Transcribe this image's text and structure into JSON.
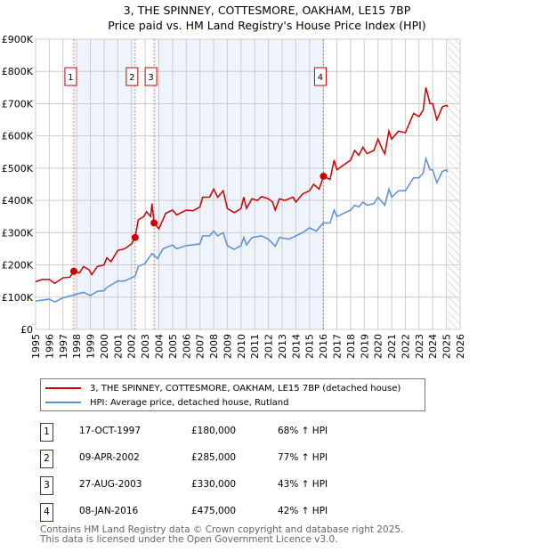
{
  "chart_data": {
    "type": "line",
    "title": "3, THE SPINNEY, COTTESMORE, OAKHAM, LE15 7BP",
    "subtitle": "Price paid vs. HM Land Registry's House Price Index (HPI)",
    "xlim": [
      1995,
      2026
    ],
    "ylim": [
      0,
      900000
    ],
    "x_ticks": [
      "1995",
      "1996",
      "1997",
      "1998",
      "1999",
      "2000",
      "2001",
      "2002",
      "2003",
      "2004",
      "2005",
      "2006",
      "2007",
      "2008",
      "2009",
      "2010",
      "2011",
      "2012",
      "2013",
      "2014",
      "2015",
      "2016",
      "2017",
      "2018",
      "2019",
      "2020",
      "2021",
      "2022",
      "2023",
      "2024",
      "2025",
      "2026"
    ],
    "y_ticks": [
      {
        "v": 0,
        "label": "£0"
      },
      {
        "v": 100000,
        "label": "£100K"
      },
      {
        "v": 200000,
        "label": "£200K"
      },
      {
        "v": 300000,
        "label": "£300K"
      },
      {
        "v": 400000,
        "label": "£400K"
      },
      {
        "v": 500000,
        "label": "£500K"
      },
      {
        "v": 600000,
        "label": "£600K"
      },
      {
        "v": 700000,
        "label": "£700K"
      },
      {
        "v": 800000,
        "label": "£800K"
      },
      {
        "v": 900000,
        "label": "£900K"
      }
    ],
    "grid": true,
    "shaded_ranges": [
      [
        1997.79,
        2002.27
      ],
      [
        2003.65,
        2016.02
      ]
    ],
    "hatched_from": 2025.1,
    "series": [
      {
        "name": "3, THE SPINNEY, COTTESMORE, OAKHAM, LE15 7BP (detached house)",
        "color": "#cc0000",
        "points": [
          [
            1995.0,
            148
          ],
          [
            1995.5,
            155
          ],
          [
            1996.0,
            155
          ],
          [
            1996.4,
            143
          ],
          [
            1997.0,
            160
          ],
          [
            1997.5,
            162
          ],
          [
            1997.79,
            180
          ],
          [
            1998.2,
            175
          ],
          [
            1998.5,
            195
          ],
          [
            1998.9,
            185
          ],
          [
            1999.1,
            170
          ],
          [
            1999.5,
            195
          ],
          [
            2000.0,
            200
          ],
          [
            2000.2,
            222
          ],
          [
            2000.5,
            210
          ],
          [
            2001.0,
            245
          ],
          [
            2001.5,
            250
          ],
          [
            2002.0,
            265
          ],
          [
            2002.27,
            285
          ],
          [
            2002.5,
            340
          ],
          [
            2002.9,
            350
          ],
          [
            2003.1,
            365
          ],
          [
            2003.4,
            350
          ],
          [
            2003.5,
            390
          ],
          [
            2003.65,
            330
          ],
          [
            2004.0,
            312
          ],
          [
            2004.5,
            360
          ],
          [
            2005.0,
            370
          ],
          [
            2005.3,
            355
          ],
          [
            2006.0,
            370
          ],
          [
            2006.5,
            368
          ],
          [
            2007.0,
            380
          ],
          [
            2007.2,
            410
          ],
          [
            2007.7,
            410
          ],
          [
            2008.0,
            435
          ],
          [
            2008.3,
            410
          ],
          [
            2008.7,
            430
          ],
          [
            2009.0,
            375
          ],
          [
            2009.5,
            362
          ],
          [
            2010.0,
            375
          ],
          [
            2010.2,
            410
          ],
          [
            2010.4,
            375
          ],
          [
            2010.8,
            405
          ],
          [
            2011.2,
            400
          ],
          [
            2011.5,
            412
          ],
          [
            2012.0,
            405
          ],
          [
            2012.3,
            395
          ],
          [
            2012.5,
            370
          ],
          [
            2012.8,
            405
          ],
          [
            2013.2,
            400
          ],
          [
            2013.8,
            410
          ],
          [
            2014.0,
            395
          ],
          [
            2014.5,
            420
          ],
          [
            2015.0,
            430
          ],
          [
            2015.3,
            450
          ],
          [
            2015.7,
            435
          ],
          [
            2016.02,
            475
          ],
          [
            2016.5,
            465
          ],
          [
            2016.8,
            525
          ],
          [
            2017.0,
            495
          ],
          [
            2017.5,
            510
          ],
          [
            2018.0,
            525
          ],
          [
            2018.3,
            555
          ],
          [
            2018.6,
            540
          ],
          [
            2018.9,
            565
          ],
          [
            2019.2,
            545
          ],
          [
            2019.7,
            555
          ],
          [
            2020.0,
            590
          ],
          [
            2020.3,
            560
          ],
          [
            2020.5,
            545
          ],
          [
            2020.8,
            615
          ],
          [
            2021.0,
            590
          ],
          [
            2021.5,
            615
          ],
          [
            2022.0,
            610
          ],
          [
            2022.3,
            640
          ],
          [
            2022.6,
            670
          ],
          [
            2023.0,
            660
          ],
          [
            2023.3,
            680
          ],
          [
            2023.5,
            750
          ],
          [
            2023.8,
            700
          ],
          [
            2024.0,
            700
          ],
          [
            2024.3,
            650
          ],
          [
            2024.7,
            690
          ],
          [
            2025.0,
            695
          ],
          [
            2025.1,
            690
          ]
        ]
      },
      {
        "name": "HPI: Average price, detached house, Rutland",
        "color": "#5b8fd4",
        "points": [
          [
            1995.0,
            88
          ],
          [
            1996.0,
            94
          ],
          [
            1996.4,
            85
          ],
          [
            1997.0,
            98
          ],
          [
            1997.79,
            107
          ],
          [
            1998.5,
            115
          ],
          [
            1999.0,
            105
          ],
          [
            1999.5,
            118
          ],
          [
            2000.0,
            120
          ],
          [
            2000.2,
            130
          ],
          [
            2001.0,
            150
          ],
          [
            2001.5,
            150
          ],
          [
            2002.0,
            160
          ],
          [
            2002.27,
            165
          ],
          [
            2002.5,
            195
          ],
          [
            2003.0,
            205
          ],
          [
            2003.5,
            235
          ],
          [
            2003.9,
            220
          ],
          [
            2004.3,
            250
          ],
          [
            2005.0,
            262
          ],
          [
            2005.3,
            250
          ],
          [
            2006.0,
            260
          ],
          [
            2007.0,
            265
          ],
          [
            2007.2,
            290
          ],
          [
            2007.7,
            290
          ],
          [
            2008.0,
            305
          ],
          [
            2008.3,
            290
          ],
          [
            2008.7,
            300
          ],
          [
            2009.0,
            260
          ],
          [
            2009.5,
            248
          ],
          [
            2010.0,
            260
          ],
          [
            2010.2,
            285
          ],
          [
            2010.4,
            262
          ],
          [
            2010.8,
            285
          ],
          [
            2011.5,
            290
          ],
          [
            2012.0,
            280
          ],
          [
            2012.5,
            258
          ],
          [
            2012.8,
            285
          ],
          [
            2013.5,
            280
          ],
          [
            2014.0,
            290
          ],
          [
            2014.5,
            300
          ],
          [
            2015.0,
            315
          ],
          [
            2015.5,
            305
          ],
          [
            2016.0,
            330
          ],
          [
            2016.5,
            330
          ],
          [
            2016.8,
            370
          ],
          [
            2017.0,
            350
          ],
          [
            2017.5,
            360
          ],
          [
            2018.0,
            370
          ],
          [
            2018.3,
            385
          ],
          [
            2018.6,
            380
          ],
          [
            2018.9,
            395
          ],
          [
            2019.2,
            385
          ],
          [
            2019.7,
            390
          ],
          [
            2020.0,
            410
          ],
          [
            2020.3,
            395
          ],
          [
            2020.5,
            385
          ],
          [
            2020.8,
            435
          ],
          [
            2021.0,
            410
          ],
          [
            2021.5,
            430
          ],
          [
            2022.0,
            430
          ],
          [
            2022.3,
            450
          ],
          [
            2022.6,
            470
          ],
          [
            2023.0,
            470
          ],
          [
            2023.3,
            485
          ],
          [
            2023.5,
            530
          ],
          [
            2023.8,
            495
          ],
          [
            2024.0,
            495
          ],
          [
            2024.3,
            455
          ],
          [
            2024.7,
            490
          ],
          [
            2025.0,
            495
          ],
          [
            2025.1,
            488
          ]
        ]
      }
    ],
    "sales": [
      {
        "label": "1",
        "x": 1997.79,
        "y": 180000
      },
      {
        "label": "2",
        "x": 2002.27,
        "y": 285000
      },
      {
        "label": "3",
        "x": 2003.65,
        "y": 330000
      },
      {
        "label": "4",
        "x": 2016.02,
        "y": 475000
      }
    ]
  },
  "header": {
    "title": "3, THE SPINNEY, COTTESMORE, OAKHAM, LE15 7BP",
    "subtitle": "Price paid vs. HM Land Registry's House Price Index (HPI)"
  },
  "legend": {
    "property": "3, THE SPINNEY, COTTESMORE, OAKHAM, LE15 7BP (detached house)",
    "hpi": "HPI: Average price, detached house, Rutland"
  },
  "transactions": [
    {
      "n": "1",
      "date": "17-OCT-1997",
      "price": "£180,000",
      "hpi": "68% ↑ HPI"
    },
    {
      "n": "2",
      "date": "09-APR-2002",
      "price": "£285,000",
      "hpi": "77% ↑ HPI"
    },
    {
      "n": "3",
      "date": "27-AUG-2003",
      "price": "£330,000",
      "hpi": "43% ↑ HPI"
    },
    {
      "n": "4",
      "date": "08-JAN-2016",
      "price": "£475,000",
      "hpi": "42% ↑ HPI"
    }
  ],
  "footer": {
    "line1": "Contains HM Land Registry data © Crown copyright and database right 2025.",
    "line2": "This data is licensed under the Open Government Licence v3.0."
  }
}
